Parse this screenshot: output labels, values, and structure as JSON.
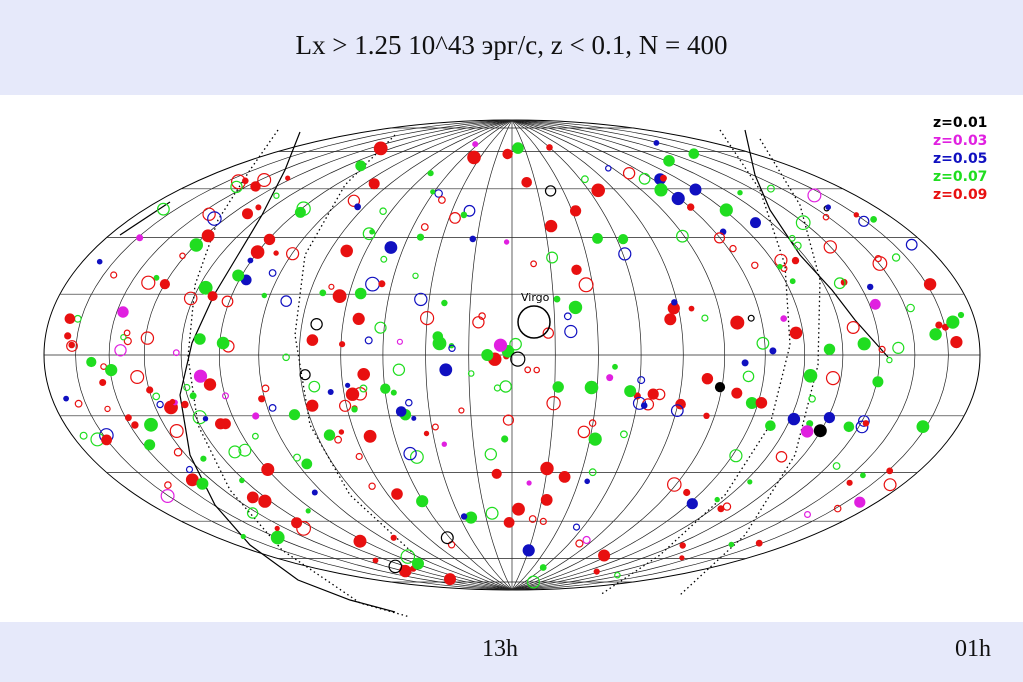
{
  "title": "Lx > 1.25 10^43 эрг/c,  z < 0.1, N = 400",
  "bottom_labels": {
    "center": "13h",
    "right": "01h"
  },
  "chart_data": {
    "type": "scatter",
    "projection": "aitoff-hammer all-sky",
    "title": "Lx > 1.25 10^43 эрг/c,  z < 0.1, N = 400",
    "x_tick_labels": [
      "13h",
      "01h"
    ],
    "grid": true,
    "legend_placement": "top-right",
    "annotation": "Virgo",
    "series": [
      {
        "name": "z=0.01",
        "color": "#000000"
      },
      {
        "name": "z=0.03",
        "color": "#e020e0"
      },
      {
        "name": "z=0.05",
        "color": "#1010c0"
      },
      {
        "name": "z=0.07",
        "color": "#20dd20"
      },
      {
        "name": "z=0.09",
        "color": "#e81010"
      }
    ],
    "total_objects": 400
  }
}
